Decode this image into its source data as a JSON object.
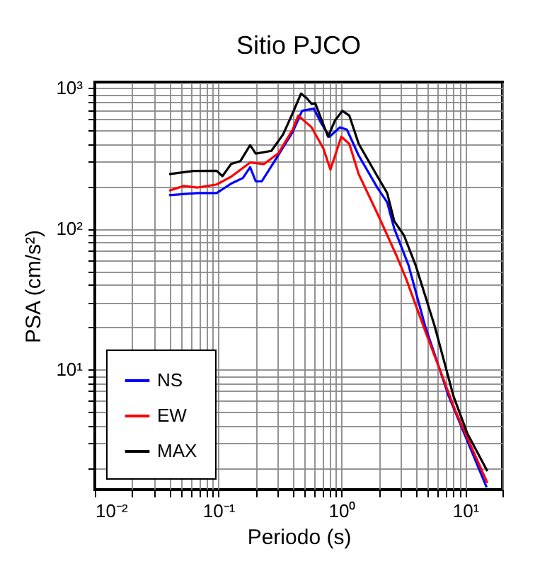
{
  "chart_data": {
    "type": "line",
    "title": "Sitio PJCO",
    "xlabel": "Periodo (s)",
    "ylabel": "PSA (cm/s²)",
    "log": "xy",
    "grid": true,
    "legend": "bottom left",
    "xlim": [
      0.01,
      20
    ],
    "ylim": [
      1.4,
      1100
    ],
    "xticks": [
      {
        "value": 0.01,
        "label": "10⁻²"
      },
      {
        "value": 0.02,
        "label": null
      },
      {
        "value": 0.03,
        "label": null
      },
      {
        "value": 0.04,
        "label": null
      },
      {
        "value": 0.05,
        "label": null
      },
      {
        "value": 0.06,
        "label": null
      },
      {
        "value": 0.07,
        "label": null
      },
      {
        "value": 0.08,
        "label": null
      },
      {
        "value": 0.09,
        "label": null
      },
      {
        "value": 0.1,
        "label": "10⁻¹"
      },
      {
        "value": 0.2,
        "label": null
      },
      {
        "value": 0.3,
        "label": null
      },
      {
        "value": 0.4,
        "label": null
      },
      {
        "value": 0.5,
        "label": null
      },
      {
        "value": 0.6,
        "label": null
      },
      {
        "value": 0.7,
        "label": null
      },
      {
        "value": 0.8,
        "label": null
      },
      {
        "value": 0.9,
        "label": null
      },
      {
        "value": 1,
        "label": "10⁰"
      },
      {
        "value": 2,
        "label": null
      },
      {
        "value": 3,
        "label": null
      },
      {
        "value": 4,
        "label": null
      },
      {
        "value": 5,
        "label": null
      },
      {
        "value": 6,
        "label": null
      },
      {
        "value": 7,
        "label": null
      },
      {
        "value": 8,
        "label": null
      },
      {
        "value": 9,
        "label": null
      },
      {
        "value": 10,
        "label": "10¹"
      },
      {
        "value": 20,
        "label": null
      }
    ],
    "yticks": [
      {
        "value": 2,
        "label": null
      },
      {
        "value": 3,
        "label": null
      },
      {
        "value": 4,
        "label": null
      },
      {
        "value": 5,
        "label": null
      },
      {
        "value": 6,
        "label": null
      },
      {
        "value": 7,
        "label": null
      },
      {
        "value": 8,
        "label": null
      },
      {
        "value": 9,
        "label": null
      },
      {
        "value": 10,
        "label": "10¹"
      },
      {
        "value": 20,
        "label": null
      },
      {
        "value": 30,
        "label": null
      },
      {
        "value": 40,
        "label": null
      },
      {
        "value": 50,
        "label": null
      },
      {
        "value": 60,
        "label": null
      },
      {
        "value": 70,
        "label": null
      },
      {
        "value": 80,
        "label": null
      },
      {
        "value": 90,
        "label": null
      },
      {
        "value": 100,
        "label": "10²"
      },
      {
        "value": 200,
        "label": null
      },
      {
        "value": 300,
        "label": null
      },
      {
        "value": 400,
        "label": null
      },
      {
        "value": 500,
        "label": null
      },
      {
        "value": 600,
        "label": null
      },
      {
        "value": 700,
        "label": null
      },
      {
        "value": 800,
        "label": null
      },
      {
        "value": 900,
        "label": null
      },
      {
        "value": 1000,
        "label": "10³"
      }
    ],
    "series": [
      {
        "name": "NS",
        "color": "#0000ff",
        "x": [
          0.04,
          0.068,
          0.097,
          0.127,
          0.158,
          0.181,
          0.201,
          0.225,
          0.281,
          0.4,
          0.477,
          0.594,
          0.678,
          0.795,
          0.966,
          1.1,
          1.37,
          1.95,
          2.33,
          2.66,
          3.47,
          4.72,
          7.34,
          14.9
        ],
        "values": [
          173,
          179,
          179,
          209,
          229,
          273,
          217,
          217,
          295,
          486,
          687,
          713,
          566,
          450,
          525,
          505,
          331,
          194,
          154,
          100,
          55,
          20.4,
          6.46,
          1.45
        ]
      },
      {
        "name": "EW",
        "color": "#ff0000",
        "x": [
          0.04,
          0.0525,
          0.068,
          0.097,
          0.127,
          0.181,
          0.235,
          0.307,
          0.4,
          0.444,
          0.569,
          0.709,
          0.809,
          0.883,
          0.99,
          1.15,
          1.37,
          1.95,
          2.78,
          3.32,
          4.72,
          8.3,
          15.1
        ],
        "values": [
          186,
          201,
          196,
          206,
          234,
          295,
          288,
          344,
          505,
          636,
          525,
          372,
          263,
          331,
          450,
          401,
          244,
          127,
          64,
          44,
          18.9,
          5.1,
          1.56
        ]
      },
      {
        "name": "MAX",
        "color": "#000000",
        "x": [
          0.04,
          0.063,
          0.097,
          0.108,
          0.127,
          0.151,
          0.181,
          0.201,
          0.269,
          0.335,
          0.4,
          0.468,
          0.52,
          0.569,
          0.61,
          0.774,
          0.883,
          1.01,
          1.15,
          1.37,
          1.95,
          2.33,
          2.66,
          3.18,
          3.96,
          5.64,
          8.02,
          10.4,
          15.1
        ],
        "values": [
          244,
          257,
          258,
          236,
          288,
          302,
          392,
          341,
          357,
          468,
          661,
          912,
          845,
          770,
          776,
          450,
          589,
          687,
          636,
          401,
          234,
          179,
          113,
          90,
          55,
          20.4,
          6.46,
          3.5,
          1.89
        ]
      }
    ]
  }
}
